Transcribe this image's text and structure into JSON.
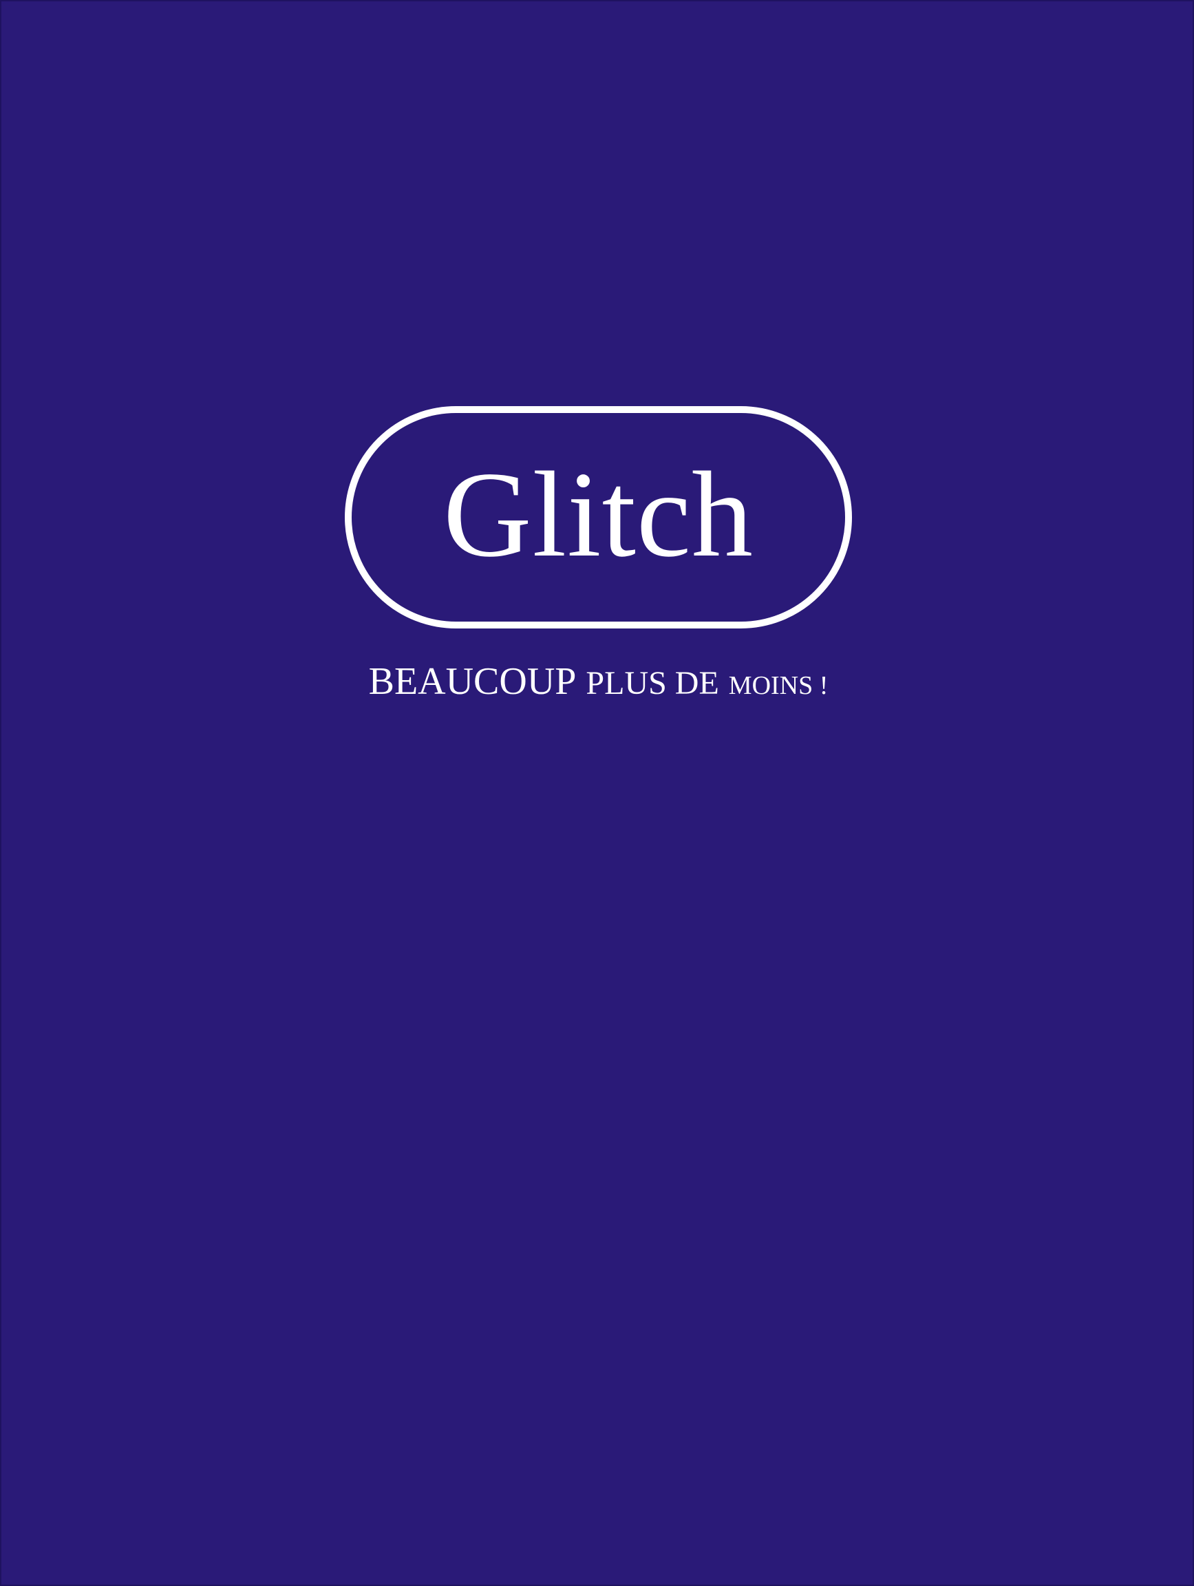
{
  "brand": {
    "name": "Glitch"
  },
  "tagline": {
    "part1": "BEAUCOUP",
    "part2": "PLUS DE",
    "part3": "MOINS !"
  },
  "colors": {
    "background": "#2a1a78",
    "foreground": "#ffffff"
  }
}
